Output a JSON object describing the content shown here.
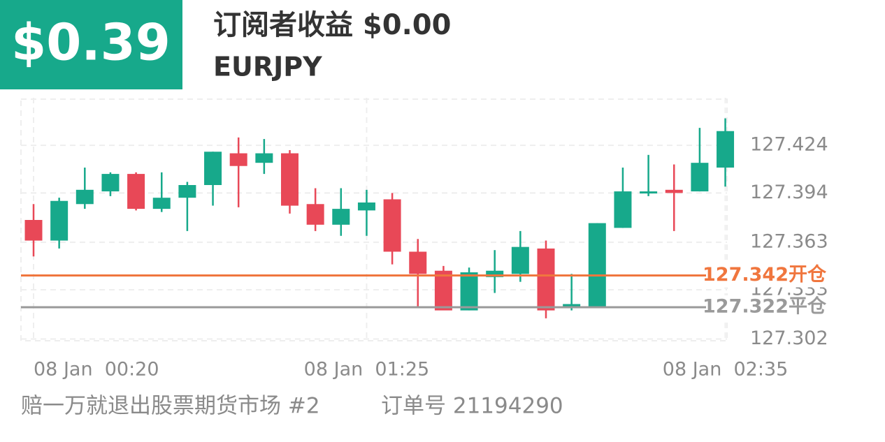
{
  "header": {
    "profit": "$0.39",
    "title": "订阅者收益 $0.00",
    "symbol": "EURJPY"
  },
  "chart_data": {
    "type": "candlestick",
    "categories": [
      "08 Jan  00:20",
      null,
      null,
      null,
      null,
      null,
      null,
      null,
      null,
      null,
      null,
      null,
      null,
      "08 Jan  01:25",
      null,
      null,
      null,
      null,
      null,
      null,
      null,
      null,
      null,
      null,
      null,
      null,
      null,
      "08 Jan  02:35"
    ],
    "open": [
      127.377,
      127.364,
      127.387,
      127.395,
      127.406,
      127.384,
      127.391,
      127.399,
      127.419,
      127.413,
      127.419,
      127.387,
      127.374,
      127.383,
      127.39,
      127.357,
      127.345,
      127.32,
      127.341,
      127.343,
      127.359,
      127.322,
      127.322,
      127.372,
      127.394,
      127.396,
      127.395,
      127.41
    ],
    "high": [
      127.387,
      127.391,
      127.41,
      127.407,
      127.407,
      127.407,
      127.401,
      127.42,
      127.429,
      127.428,
      127.421,
      127.397,
      127.397,
      127.396,
      127.394,
      127.365,
      127.348,
      127.347,
      127.358,
      127.37,
      127.364,
      127.343,
      127.375,
      127.41,
      127.418,
      127.412,
      127.435,
      127.441
    ],
    "low": [
      127.354,
      127.359,
      127.384,
      127.392,
      127.383,
      127.382,
      127.37,
      127.386,
      127.385,
      127.406,
      127.381,
      127.37,
      127.367,
      127.367,
      127.349,
      127.322,
      127.32,
      127.32,
      127.331,
      127.338,
      127.315,
      127.32,
      127.322,
      127.372,
      127.392,
      127.37,
      127.395,
      127.398
    ],
    "close": [
      127.364,
      127.389,
      127.396,
      127.406,
      127.384,
      127.391,
      127.399,
      127.42,
      127.411,
      127.419,
      127.386,
      127.374,
      127.384,
      127.388,
      127.357,
      127.343,
      127.32,
      127.344,
      127.345,
      127.36,
      127.32,
      127.324,
      127.375,
      127.395,
      127.395,
      127.394,
      127.413,
      127.433
    ],
    "up_color": "#17a98b",
    "down_color": "#e84857",
    "ylim": [
      127.3,
      127.454
    ],
    "yticks": [
      127.302,
      127.333,
      127.363,
      127.394,
      127.424
    ],
    "grid": true,
    "lines": [
      {
        "value": 127.342,
        "label": "127.342开仓",
        "color": "#f0763e"
      },
      {
        "value": 127.322,
        "label": "127.322平仓",
        "color": "#9a9a9a"
      }
    ]
  },
  "footer": {
    "name": "赔一万就退出股票期货市场 #2",
    "order": "订单号 21194290"
  }
}
